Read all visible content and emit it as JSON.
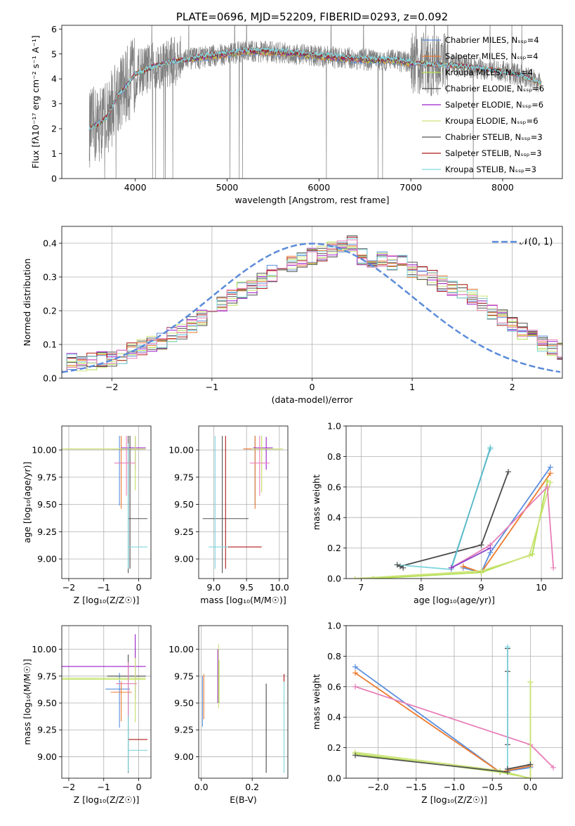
{
  "colors": {
    "chabrier_miles": "#5a8ede",
    "salpeter_miles": "#ed7a2e",
    "kroupa_miles": "#b2df4e",
    "chabrier_elodie": "#4a4a4a",
    "salpeter_elodie": "#9a1ec8",
    "kroupa_elodie": "#cde37a",
    "chabrier_stelib": "#555555",
    "salpeter_stelib": "#b01818",
    "kroupa_stelib": "#7fd6de",
    "normal_curve": "#5b8bd9",
    "data_gray": "#808080",
    "pink": "#e87fb9"
  },
  "chart_data": [
    {
      "id": "spectrum",
      "type": "line",
      "title": "PLATE=0696, MJD=52209, FIBERID=0293, z=0.092",
      "xlabel": "wavelength [Angstrom, rest frame]",
      "ylabel": "Flux [fλ10⁻¹⁷ erg cm⁻² s⁻¹ A⁻¹]",
      "xlim": [
        3200,
        8650
      ],
      "ylim": [
        0,
        6.15
      ],
      "xticks": [
        "4000",
        "5000",
        "6000",
        "7000",
        "8000"
      ],
      "yticks": [
        "0",
        "1",
        "2",
        "3",
        "4",
        "5",
        "6"
      ],
      "legend_position": "top-right",
      "data_continuum": {
        "x": [
          3500,
          3600,
          3700,
          3800,
          3900,
          4000,
          4200,
          4400,
          4600,
          4800,
          5000,
          5200,
          5400,
          5600,
          5800,
          6000,
          6200,
          6400,
          6600,
          6800,
          7000,
          7200,
          7400,
          7600,
          7800,
          8000,
          8200,
          8400
        ],
        "y": [
          2.0,
          2.2,
          2.5,
          3.3,
          3.7,
          4.2,
          4.5,
          4.7,
          4.8,
          4.9,
          5.0,
          5.1,
          5.1,
          5.05,
          5.0,
          4.9,
          4.85,
          4.8,
          4.75,
          4.75,
          4.65,
          4.6,
          4.55,
          4.5,
          4.4,
          4.3,
          4.15,
          3.85
        ]
      },
      "series": [
        {
          "name": "Chabrier MILES, N_SSP=4",
          "color": "#5a8ede"
        },
        {
          "name": "Salpeter MILES, N_SSP=4",
          "color": "#ed7a2e"
        },
        {
          "name": "Kroupa MILES, N_SSP=4",
          "color": "#b2df4e"
        },
        {
          "name": "Chabrier ELODIE, N_SSP=6",
          "color": "#4a4a4a"
        },
        {
          "name": "Salpeter ELODIE, N_SSP=6",
          "color": "#9a1ec8"
        },
        {
          "name": "Kroupa ELODIE, N_SSP=6",
          "color": "#cde37a"
        },
        {
          "name": "Chabrier STELIB, N_SSP=3",
          "color": "#555555"
        },
        {
          "name": "Salpeter STELIB, N_SSP=3",
          "color": "#b01818"
        },
        {
          "name": "Kroupa STELIB, N_SSP=3",
          "color": "#7fd6de"
        }
      ]
    },
    {
      "id": "residuals",
      "type": "line",
      "xlabel": "(data-model)/error",
      "ylabel": "Normed distribution",
      "xlim": [
        -2.5,
        2.5
      ],
      "ylim": [
        0,
        0.45
      ],
      "xticks": [
        "−2",
        "−1",
        "0",
        "1",
        "2"
      ],
      "yticks": [
        "0.0",
        "0.1",
        "0.2",
        "0.3",
        "0.4"
      ],
      "legend_label": "𝒩(0, 1)",
      "legend_position": "top-right",
      "bin_width": 0.1,
      "hist_base": [
        0.045,
        0.05,
        0.045,
        0.05,
        0.055,
        0.06,
        0.065,
        0.08,
        0.09,
        0.1,
        0.11,
        0.13,
        0.14,
        0.16,
        0.18,
        0.2,
        0.22,
        0.24,
        0.26,
        0.27,
        0.29,
        0.31,
        0.33,
        0.34,
        0.35,
        0.36,
        0.37,
        0.38,
        0.39,
        0.4,
        0.36,
        0.35,
        0.35,
        0.34,
        0.34,
        0.32,
        0.31,
        0.3,
        0.28,
        0.27,
        0.26,
        0.24,
        0.22,
        0.2,
        0.18,
        0.16,
        0.14,
        0.12,
        0.1,
        0.09,
        0.08
      ]
    },
    {
      "id": "age_vs_Z",
      "type": "scatter",
      "xlabel": "Z [log₁₀(Z/Z☉)]",
      "ylabel": "age  [log₁₀(age/yr)]",
      "xlim": [
        -2.2,
        0.35
      ],
      "ylim": [
        8.82,
        10.22
      ],
      "xticks": [
        "−2",
        "−1",
        "0"
      ],
      "yticks": [
        "9.00",
        "9.25",
        "9.50",
        "9.75",
        "10.00"
      ],
      "points": [
        {
          "x": -0.55,
          "y": 10.01,
          "xerr": [
            1.5,
            0.7
          ],
          "yerr": [
            0.52,
            0.12
          ],
          "color": "#5a8ede"
        },
        {
          "x": -0.5,
          "y": 10.01,
          "xerr": [
            1.6,
            0.7
          ],
          "yerr": [
            0.55,
            0.12
          ],
          "color": "#ed7a2e"
        },
        {
          "x": -0.1,
          "y": 10.01,
          "xerr": [
            2.1,
            0.3
          ],
          "yerr": [
            0.38,
            0.12
          ],
          "color": "#b2df4e"
        },
        {
          "x": -0.25,
          "y": 10.01,
          "xerr": [
            0.5,
            0.45
          ],
          "yerr": [
            1.1,
            0.12
          ],
          "color": "#4a4a4a"
        },
        {
          "x": -0.1,
          "y": 10.02,
          "xerr": [
            0.4,
            0.3
          ],
          "yerr": [
            0.2,
            0.1
          ],
          "color": "#9a1ec8"
        },
        {
          "x": -0.1,
          "y": 10.01,
          "xerr": [
            2.1,
            0.3
          ],
          "yerr": [
            0.38,
            0.12
          ],
          "color": "#cde37a"
        },
        {
          "x": -0.3,
          "y": 9.37,
          "xerr": [
            0.0,
            0.55
          ],
          "yerr": [
            0.5,
            0.76
          ],
          "color": "#555555"
        },
        {
          "x": -0.3,
          "y": 9.11,
          "xerr": [
            0.0,
            0.55
          ],
          "yerr": [
            0.2,
            0.95
          ],
          "color": "#7fd6de"
        },
        {
          "x": -0.35,
          "y": 9.88,
          "xerr": [
            0.35,
            0.25
          ],
          "yerr": [
            0.3,
            0.25
          ],
          "color": "#e87fb9"
        }
      ]
    },
    {
      "id": "age_vs_mass",
      "type": "scatter",
      "xlabel": "mass [log₁₀(M/M☉)]",
      "ylabel": "",
      "xlim": [
        8.77,
        10.13
      ],
      "ylim": [
        8.82,
        10.22
      ],
      "xticks": [
        "9.0",
        "9.5",
        "10.0"
      ],
      "yticks": [
        "9.00",
        "9.25",
        "9.50",
        "9.75",
        "10.00"
      ],
      "points": [
        {
          "x": 9.63,
          "y": 10.01,
          "xerr": [
            0.18,
            0.35
          ],
          "yerr": [
            0.52,
            0.12
          ],
          "color": "#5a8ede"
        },
        {
          "x": 9.63,
          "y": 10.01,
          "xerr": [
            0.18,
            0.35
          ],
          "yerr": [
            0.55,
            0.12
          ],
          "color": "#ed7a2e"
        },
        {
          "x": 9.73,
          "y": 10.01,
          "xerr": [
            0.15,
            0.33
          ],
          "yerr": [
            0.4,
            0.12
          ],
          "color": "#b2df4e"
        },
        {
          "x": 9.13,
          "y": 9.37,
          "xerr": [
            0.3,
            0.4
          ],
          "yerr": [
            0.5,
            0.76
          ],
          "color": "#555555"
        },
        {
          "x": 9.8,
          "y": 10.02,
          "xerr": [
            0.2,
            0.1
          ],
          "yerr": [
            0.2,
            0.1
          ],
          "color": "#9a1ec8"
        },
        {
          "x": 9.73,
          "y": 10.01,
          "xerr": [
            0.15,
            0.33
          ],
          "yerr": [
            0.4,
            0.12
          ],
          "color": "#cde37a"
        },
        {
          "x": 9.18,
          "y": 9.11,
          "xerr": [
            0.0,
            0.55
          ],
          "yerr": [
            0.2,
            1.02
          ],
          "color": "#b01818"
        },
        {
          "x": 9.02,
          "y": 9.11,
          "xerr": [
            0.1,
            0.2
          ],
          "yerr": [
            0.2,
            1.02
          ],
          "color": "#7fd6de"
        },
        {
          "x": 9.7,
          "y": 9.88,
          "xerr": [
            0.15,
            0.15
          ],
          "yerr": [
            0.3,
            0.25
          ],
          "color": "#e87fb9"
        }
      ]
    },
    {
      "id": "mass_weight_vs_age",
      "type": "line",
      "xlabel": "age  [log₁₀(age/yr)]",
      "ylabel": "mass weight",
      "xlim": [
        6.75,
        10.35
      ],
      "ylim": [
        0,
        1.0
      ],
      "xticks": [
        "7",
        "8",
        "9",
        "10"
      ],
      "yticks": [
        "0.0",
        "0.2",
        "0.4",
        "0.6",
        "0.8",
        "1.0"
      ],
      "series": [
        {
          "color": "#5a8ede",
          "x": [
            8.7,
            9.0,
            9.15,
            10.15
          ],
          "y": [
            0.07,
            0.04,
            0.17,
            0.73
          ]
        },
        {
          "color": "#ed7a2e",
          "x": [
            8.7,
            9.0,
            10.15
          ],
          "y": [
            0.08,
            0.04,
            0.69
          ]
        },
        {
          "color": "#b2df4e",
          "x": [
            7.2,
            9.0,
            9.85,
            10.1
          ],
          "y": [
            0.0,
            0.04,
            0.16,
            0.64
          ]
        },
        {
          "color": "#4a4a4a",
          "x": [
            7.65,
            9.0,
            9.45
          ],
          "y": [
            0.08,
            0.22,
            0.7
          ]
        },
        {
          "color": "#cde37a",
          "x": [
            6.9,
            9.0,
            9.8,
            10.15
          ],
          "y": [
            0.0,
            0.05,
            0.15,
            0.63
          ]
        },
        {
          "color": "#7fd6de",
          "x": [
            7.6,
            8.5,
            9.15
          ],
          "y": [
            0.09,
            0.06,
            0.86
          ]
        },
        {
          "color": "#5ab8c8",
          "x": [
            8.5,
            9.15
          ],
          "y": [
            0.07,
            0.85
          ]
        },
        {
          "color": "#e87fb9",
          "x": [
            8.5,
            9.15,
            10.1,
            10.2
          ],
          "y": [
            0.07,
            0.22,
            0.6,
            0.07
          ]
        },
        {
          "color": "#8e44c8",
          "x": [
            8.5,
            9.15
          ],
          "y": [
            0.07,
            0.2
          ]
        },
        {
          "color": "#555555",
          "x": [
            7.6,
            7.7
          ],
          "y": [
            0.09,
            0.07
          ]
        }
      ]
    },
    {
      "id": "mass_vs_Z",
      "type": "scatter",
      "xlabel": "Z [log₁₀(Z/Z☉)]",
      "ylabel": "mass [log₁₀(M/M☉)]",
      "xlim": [
        -2.2,
        0.35
      ],
      "ylim": [
        8.8,
        10.22
      ],
      "xticks": [
        "−2",
        "−1",
        "0"
      ],
      "yticks": [
        "9.00",
        "9.25",
        "9.50",
        "9.75",
        "10.00"
      ],
      "points": [
        {
          "x": -0.55,
          "y": 9.63,
          "xerr": [
            0.4,
            0.3
          ],
          "yerr": [
            0.36,
            0.15
          ],
          "color": "#5a8ede"
        },
        {
          "x": -0.5,
          "y": 9.6,
          "xerr": [
            0.3,
            0.3
          ],
          "yerr": [
            0.27,
            0.1
          ],
          "color": "#ed7a2e"
        },
        {
          "x": -0.1,
          "y": 9.73,
          "xerr": [
            2.1,
            0.3
          ],
          "yerr": [
            0.4,
            0.3
          ],
          "color": "#b2df4e"
        },
        {
          "x": -0.3,
          "y": 9.75,
          "xerr": [
            0.6,
            0.5
          ],
          "yerr": [
            0.9,
            0.2
          ],
          "color": "#4a4a4a"
        },
        {
          "x": -0.1,
          "y": 9.84,
          "xerr": [
            2.1,
            0.3
          ],
          "yerr": [
            0.3,
            0.3
          ],
          "color": "#9a1ec8"
        },
        {
          "x": -0.1,
          "y": 9.72,
          "xerr": [
            2.1,
            0.3
          ],
          "yerr": [
            0.4,
            0.2
          ],
          "color": "#cde37a"
        },
        {
          "x": -0.3,
          "y": 9.16,
          "xerr": [
            0.0,
            0.55
          ],
          "yerr": [
            0.0,
            0.0
          ],
          "color": "#b01818"
        },
        {
          "x": -0.3,
          "y": 9.06,
          "xerr": [
            0.0,
            0.55
          ],
          "yerr": [
            0.2,
            0.7
          ],
          "color": "#7fd6de"
        },
        {
          "x": -0.3,
          "y": 9.68,
          "xerr": [
            0.35,
            0.25
          ],
          "yerr": [
            0.3,
            0.2
          ],
          "color": "#e87fb9"
        }
      ]
    },
    {
      "id": "mass_vs_ebv",
      "type": "scatter",
      "xlabel": "E(B-V)",
      "ylabel": "",
      "xlim": [
        -0.01,
        0.34
      ],
      "ylim": [
        8.8,
        10.22
      ],
      "xticks": [
        "0.0",
        "0.2"
      ],
      "yticks": [
        "9.00",
        "9.25",
        "9.50",
        "9.75",
        "10.00"
      ],
      "points": [
        {
          "x": 0.005,
          "y": 9.5,
          "yerr": [
            0.22,
            0.25
          ],
          "color": "#5a8ede"
        },
        {
          "x": 0.01,
          "y": 9.55,
          "yerr": [
            0.2,
            0.22
          ],
          "color": "#ed7a2e"
        },
        {
          "x": 0.065,
          "y": 9.75,
          "yerr": [
            0.25,
            0.25
          ],
          "color": "#9a1ec8"
        },
        {
          "x": 0.068,
          "y": 9.75,
          "yerr": [
            0.3,
            0.3
          ],
          "color": "#cde37a"
        },
        {
          "x": 0.07,
          "y": 9.7,
          "yerr": [
            0.2,
            0.2
          ],
          "color": "#b2df4e"
        },
        {
          "x": 0.255,
          "y": 9.2,
          "yerr": [
            0.35,
            0.48
          ],
          "color": "#4a4a4a"
        },
        {
          "x": 0.325,
          "y": 9.7,
          "yerr": [
            0.0,
            0.07
          ],
          "color": "#b01818"
        },
        {
          "x": 0.325,
          "y": 9.3,
          "yerr": [
            0.45,
            0.4
          ],
          "color": "#7fd6de"
        }
      ]
    },
    {
      "id": "mass_weight_vs_Z",
      "type": "line",
      "xlabel": "Z [log₁₀(Z/Z☉)]",
      "ylabel": "mass weight",
      "xlim": [
        -2.42,
        0.42
      ],
      "ylim": [
        0,
        1.0
      ],
      "xticks": [
        "−2.0",
        "−1.5",
        "−1.0",
        "−0.5",
        "0.0"
      ],
      "yticks": [
        "0.0",
        "0.2",
        "0.4",
        "0.6",
        "0.8",
        "1.0"
      ],
      "series": [
        {
          "color": "#5a8ede",
          "x": [
            -2.3,
            -0.4,
            0.0
          ],
          "y": [
            0.73,
            0.04,
            0.07
          ]
        },
        {
          "color": "#ed7a2e",
          "x": [
            -2.3,
            -0.4,
            0.0
          ],
          "y": [
            0.69,
            0.04,
            0.08
          ]
        },
        {
          "color": "#e87fb9",
          "x": [
            -2.3,
            0.0,
            0.3
          ],
          "y": [
            0.6,
            0.22,
            0.07
          ]
        },
        {
          "color": "#b2df4e",
          "x": [
            -2.3,
            -0.4,
            0.0,
            0.0
          ],
          "y": [
            0.16,
            0.04,
            0.0,
            0.63
          ]
        },
        {
          "color": "#cde37a",
          "x": [
            -2.3,
            -0.4,
            0.0,
            0.0
          ],
          "y": [
            0.17,
            0.05,
            0.0,
            0.63
          ]
        },
        {
          "color": "#4a4a4a",
          "x": [
            -0.3,
            -0.3,
            -0.3
          ],
          "y": [
            0.85,
            0.7,
            0.22
          ]
        },
        {
          "color": "#555555",
          "x": [
            -2.3,
            -0.3
          ],
          "y": [
            0.15,
            0.04
          ]
        },
        {
          "color": "#7fd6de",
          "x": [
            -0.3,
            -0.3
          ],
          "y": [
            0.06,
            0.86
          ]
        },
        {
          "color": "#4a4a4a",
          "x": [
            -0.3,
            0.0
          ],
          "y": [
            0.06,
            0.09
          ]
        }
      ]
    }
  ]
}
